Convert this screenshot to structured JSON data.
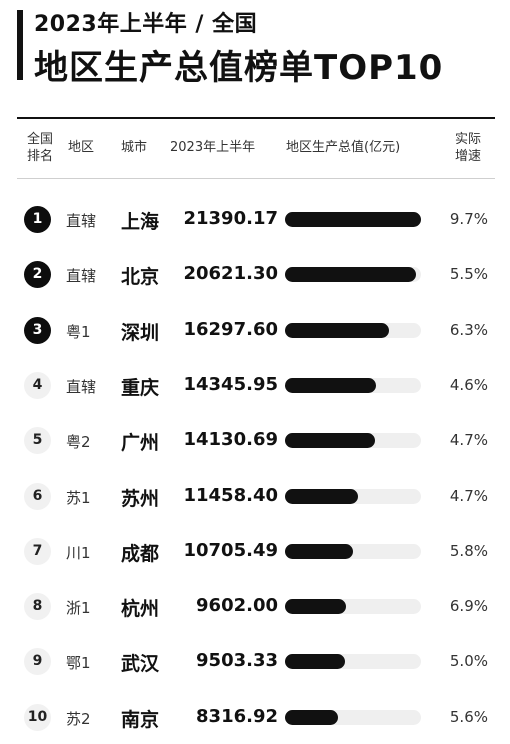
{
  "header": {
    "subtitle": "2023年上半年 / 全国",
    "title": "地区生产总值榜单TOP10"
  },
  "columns": {
    "rank_line1": "全国",
    "rank_line2": "排名",
    "region": "地区",
    "city": "城市",
    "gdp_period": "2023年上半年",
    "gdp_label": "地区生产总值(亿元)",
    "growth_line1": "实际",
    "growth_line2": "增速"
  },
  "chart_data": {
    "type": "table",
    "title": "地区生产总值榜单TOP10",
    "bar_max": 21390.17,
    "rows": [
      {
        "rank": "1",
        "region": "直辖",
        "city": "上海",
        "gdp": "21390.17",
        "value": 21390.17,
        "growth": "9.7%"
      },
      {
        "rank": "2",
        "region": "直辖",
        "city": "北京",
        "gdp": "20621.30",
        "value": 20621.3,
        "growth": "5.5%"
      },
      {
        "rank": "3",
        "region": "粤1",
        "city": "深圳",
        "gdp": "16297.60",
        "value": 16297.6,
        "growth": "6.3%"
      },
      {
        "rank": "4",
        "region": "直辖",
        "city": "重庆",
        "gdp": "14345.95",
        "value": 14345.95,
        "growth": "4.6%"
      },
      {
        "rank": "5",
        "region": "粤2",
        "city": "广州",
        "gdp": "14130.69",
        "value": 14130.69,
        "growth": "4.7%"
      },
      {
        "rank": "6",
        "region": "苏1",
        "city": "苏州",
        "gdp": "11458.40",
        "value": 11458.4,
        "growth": "4.7%"
      },
      {
        "rank": "7",
        "region": "川1",
        "city": "成都",
        "gdp": "10705.49",
        "value": 10705.49,
        "growth": "5.8%"
      },
      {
        "rank": "8",
        "region": "浙1",
        "city": "杭州",
        "gdp": "9602.00",
        "value": 9602.0,
        "growth": "6.9%"
      },
      {
        "rank": "9",
        "region": "鄂1",
        "city": "武汉",
        "gdp": "9503.33",
        "value": 9503.33,
        "growth": "5.0%"
      },
      {
        "rank": "10",
        "region": "苏2",
        "city": "南京",
        "gdp": "8316.92",
        "value": 8316.92,
        "growth": "5.6%"
      }
    ]
  },
  "colors": {
    "bar": "#111111",
    "track": "#efefef",
    "badge_top": "#0d0d0d",
    "badge_rest": "#f1f1f1"
  }
}
